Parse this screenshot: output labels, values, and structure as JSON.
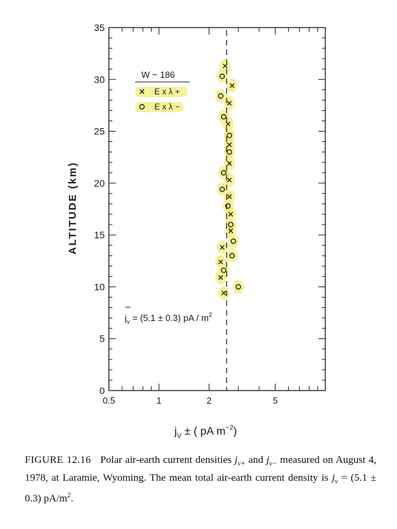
{
  "chart_data": {
    "type": "scatter",
    "xlabel": "j",
    "xlabel_sub": "V",
    "xlabel_rest": " ± ( pA m",
    "xlabel_sup": "−2",
    "xlabel_end": ")",
    "ylabel": "ALTITUDE (km)",
    "x_scale": "log",
    "xlim": [
      0.5,
      10
    ],
    "ylim": [
      0,
      35
    ],
    "x_ticks": [
      0.5,
      1,
      2,
      5
    ],
    "x_tick_labels": [
      "0.5",
      "1",
      "2",
      "5"
    ],
    "y_ticks": [
      0,
      5,
      10,
      15,
      20,
      25,
      30,
      35
    ],
    "y_tick_labels": [
      "0",
      "5",
      "10",
      "15",
      "20",
      "25",
      "30",
      "35"
    ],
    "legend": {
      "title": "W − 186",
      "entries": [
        {
          "marker": "x",
          "label": "E x λ +"
        },
        {
          "marker": "o",
          "label": "E x λ −"
        }
      ],
      "position": "top-left"
    },
    "mean_line_x": 2.55,
    "annotation": {
      "prefix": "j",
      "sub": "v",
      "text": " = (5.1 ± 0.3) pA / m",
      "sup": "2"
    },
    "highlight_color": "#f7ef8a",
    "series": [
      {
        "marker": "x",
        "points": [
          [
            2.5,
            31.3
          ],
          [
            2.75,
            29.4
          ],
          [
            2.65,
            27.7
          ],
          [
            2.6,
            25.7
          ],
          [
            2.65,
            23.7
          ],
          [
            2.65,
            21.9
          ],
          [
            2.65,
            20.3
          ],
          [
            2.65,
            18.7
          ],
          [
            2.7,
            17.0
          ],
          [
            2.7,
            15.4
          ],
          [
            2.4,
            13.8
          ],
          [
            2.35,
            12.4
          ],
          [
            2.35,
            10.9
          ],
          [
            2.45,
            9.4
          ]
        ]
      },
      {
        "marker": "o",
        "points": [
          [
            2.4,
            30.3
          ],
          [
            2.35,
            28.4
          ],
          [
            2.45,
            26.4
          ],
          [
            2.65,
            24.6
          ],
          [
            2.65,
            23.0
          ],
          [
            2.45,
            21.0
          ],
          [
            2.4,
            19.4
          ],
          [
            2.6,
            17.8
          ],
          [
            2.7,
            16.0
          ],
          [
            2.8,
            14.4
          ],
          [
            2.75,
            13.0
          ],
          [
            2.45,
            11.6
          ],
          [
            3.0,
            10.0
          ]
        ]
      }
    ]
  },
  "caption": {
    "label": "FIGURE 12.16",
    "t1": "   Polar air-earth current densities ",
    "j1": "j",
    "j1_sub": "v+",
    "t2": " and ",
    "j2": "j",
    "j2_sub": "v−",
    "t3": " measured on August 4, 1978, at Laramie, Wyoming. The mean total air-earth current density is ",
    "j3": "j",
    "j3_sub": "v",
    "t4": " = (5.1 ± 0.3) pA/m",
    "t4_sup": "2",
    "t5": "."
  }
}
